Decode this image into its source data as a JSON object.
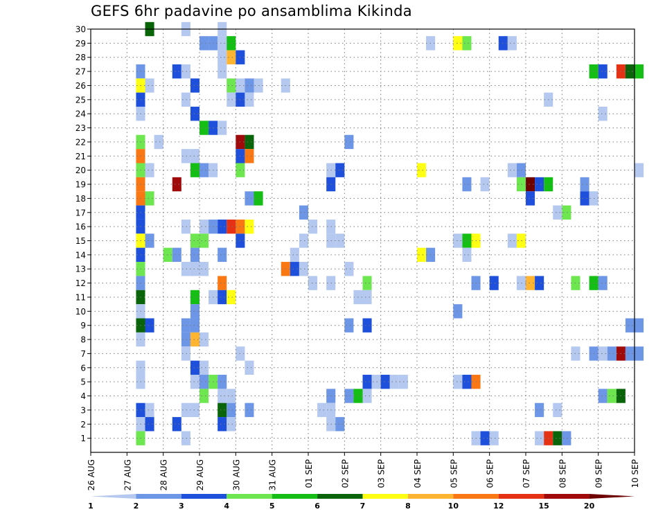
{
  "chart_data": {
    "type": "heatmap",
    "title": "GEFS 6hr padavine po ansamblima Kikinda",
    "xlabel": "",
    "ylabel": "",
    "x_ticks": [
      "26 AUG",
      "27 AUG",
      "28 AUG",
      "29 AUG",
      "30 AUG",
      "31 AUG",
      "01 SEP",
      "02 SEP",
      "03 SEP",
      "04 SEP",
      "05 SEP",
      "06 SEP",
      "07 SEP",
      "08 SEP",
      "09 SEP",
      "10 SEP"
    ],
    "x_range_days": [
      0,
      15
    ],
    "x_step_days": 0.25,
    "y_ticks": [
      1,
      2,
      3,
      4,
      5,
      6,
      7,
      8,
      9,
      10,
      11,
      12,
      13,
      14,
      15,
      16,
      17,
      18,
      19,
      20,
      21,
      22,
      23,
      24,
      25,
      26,
      27,
      28,
      29,
      30
    ],
    "y_range": [
      0,
      30
    ],
    "grid": true,
    "colorbar": {
      "labels": [
        "1",
        "2",
        "3",
        "4",
        "5",
        "6",
        "7",
        "8",
        "10",
        "12",
        "15",
        "20"
      ],
      "colors": [
        "#b4c8f0",
        "#6e96e6",
        "#1e50dc",
        "#6ee650",
        "#14be14",
        "#0a640a",
        "#ffff14",
        "#ffb432",
        "#fa7814",
        "#e63214",
        "#a00a0a",
        "#6e0000"
      ]
    },
    "cell_values_note": "class index 1-12 maps to colorbar.colors",
    "cells": [
      [
        1.5,
        30,
        6
      ],
      [
        2.5,
        30,
        1
      ],
      [
        3.5,
        30,
        1
      ],
      [
        3,
        29,
        2
      ],
      [
        3.25,
        29,
        2
      ],
      [
        3.5,
        29,
        1
      ],
      [
        3.75,
        29,
        5
      ],
      [
        9.25,
        29,
        1
      ],
      [
        10,
        29,
        7
      ],
      [
        10.25,
        29,
        4
      ],
      [
        11.25,
        29,
        3
      ],
      [
        11.5,
        29,
        1
      ],
      [
        3.5,
        28,
        1
      ],
      [
        3.75,
        28,
        8
      ],
      [
        4,
        28,
        3
      ],
      [
        3.5,
        27,
        1
      ],
      [
        1.25,
        27,
        2
      ],
      [
        2.25,
        27,
        3
      ],
      [
        2.5,
        27,
        1
      ],
      [
        13.75,
        27,
        5
      ],
      [
        14,
        27,
        3
      ],
      [
        14.5,
        27,
        10
      ],
      [
        14.75,
        27,
        6
      ],
      [
        15,
        27,
        5
      ],
      [
        1.25,
        26,
        7
      ],
      [
        1.5,
        26,
        1
      ],
      [
        2.75,
        26,
        3
      ],
      [
        3.75,
        26,
        4
      ],
      [
        4,
        26,
        1
      ],
      [
        4.25,
        26,
        2
      ],
      [
        4.5,
        26,
        1
      ],
      [
        5.25,
        26,
        1
      ],
      [
        1.25,
        25,
        3
      ],
      [
        2.5,
        25,
        1
      ],
      [
        3.75,
        25,
        1
      ],
      [
        4,
        25,
        3
      ],
      [
        4.25,
        25,
        1
      ],
      [
        12.5,
        25,
        1
      ],
      [
        1.25,
        24,
        1
      ],
      [
        2.75,
        24,
        3
      ],
      [
        14,
        24,
        1
      ],
      [
        3,
        23,
        5
      ],
      [
        3.25,
        23,
        3
      ],
      [
        3.5,
        23,
        1
      ],
      [
        1.25,
        22,
        4
      ],
      [
        1.75,
        22,
        1
      ],
      [
        4,
        22,
        11
      ],
      [
        4.25,
        22,
        6
      ],
      [
        7,
        22,
        2
      ],
      [
        1.25,
        21,
        9
      ],
      [
        2.5,
        21,
        1
      ],
      [
        2.75,
        21,
        1
      ],
      [
        4,
        21,
        3
      ],
      [
        4.25,
        21,
        9
      ],
      [
        1.25,
        20,
        4
      ],
      [
        1.5,
        20,
        1
      ],
      [
        2.75,
        20,
        5
      ],
      [
        3,
        20,
        2
      ],
      [
        3.25,
        20,
        1
      ],
      [
        4,
        20,
        4
      ],
      [
        6.5,
        20,
        1
      ],
      [
        6.75,
        20,
        3
      ],
      [
        9,
        20,
        7
      ],
      [
        11.5,
        20,
        1
      ],
      [
        11.75,
        20,
        2
      ],
      [
        15,
        20,
        1
      ],
      [
        1.25,
        19,
        9
      ],
      [
        2.25,
        19,
        11
      ],
      [
        6.5,
        19,
        3
      ],
      [
        10.25,
        19,
        2
      ],
      [
        10.75,
        19,
        1
      ],
      [
        11.75,
        19,
        4
      ],
      [
        12,
        19,
        12
      ],
      [
        12.25,
        19,
        3
      ],
      [
        12.5,
        19,
        5
      ],
      [
        13.5,
        19,
        2
      ],
      [
        1.25,
        18,
        9
      ],
      [
        1.5,
        18,
        4
      ],
      [
        4.25,
        18,
        2
      ],
      [
        4.5,
        18,
        5
      ],
      [
        12,
        18,
        3
      ],
      [
        13.5,
        18,
        3
      ],
      [
        13.75,
        18,
        1
      ],
      [
        1.25,
        17,
        3
      ],
      [
        5.75,
        17,
        2
      ],
      [
        12.75,
        17,
        1
      ],
      [
        13,
        17,
        4
      ],
      [
        1.25,
        16,
        3
      ],
      [
        2.5,
        16,
        1
      ],
      [
        3,
        16,
        1
      ],
      [
        3.25,
        16,
        2
      ],
      [
        3.5,
        16,
        3
      ],
      [
        3.75,
        16,
        10
      ],
      [
        4,
        16,
        9
      ],
      [
        4.25,
        16,
        7
      ],
      [
        6,
        16,
        1
      ],
      [
        6.5,
        16,
        1
      ],
      [
        1.25,
        15,
        7
      ],
      [
        1.5,
        15,
        2
      ],
      [
        2.75,
        15,
        4
      ],
      [
        3,
        15,
        4
      ],
      [
        4,
        15,
        3
      ],
      [
        5.75,
        15,
        1
      ],
      [
        6.5,
        15,
        1
      ],
      [
        6.75,
        15,
        1
      ],
      [
        10,
        15,
        1
      ],
      [
        10.25,
        15,
        5
      ],
      [
        10.5,
        15,
        7
      ],
      [
        11.5,
        15,
        1
      ],
      [
        11.75,
        15,
        7
      ],
      [
        1.25,
        14,
        3
      ],
      [
        2,
        14,
        4
      ],
      [
        2.25,
        14,
        2
      ],
      [
        2.75,
        14,
        2
      ],
      [
        3.5,
        14,
        2
      ],
      [
        5.5,
        14,
        1
      ],
      [
        9,
        14,
        7
      ],
      [
        9.25,
        14,
        2
      ],
      [
        10.25,
        14,
        1
      ],
      [
        1.25,
        13,
        4
      ],
      [
        2.5,
        13,
        1
      ],
      [
        2.75,
        13,
        1
      ],
      [
        3,
        13,
        1
      ],
      [
        5.25,
        13,
        9
      ],
      [
        5.5,
        13,
        3
      ],
      [
        5.75,
        13,
        1
      ],
      [
        7,
        13,
        1
      ],
      [
        1.25,
        12,
        2
      ],
      [
        3.5,
        12,
        9
      ],
      [
        6,
        12,
        1
      ],
      [
        6.5,
        12,
        1
      ],
      [
        7.5,
        12,
        4
      ],
      [
        10.5,
        12,
        2
      ],
      [
        11,
        12,
        3
      ],
      [
        11.75,
        12,
        1
      ],
      [
        12,
        12,
        8
      ],
      [
        12.25,
        12,
        3
      ],
      [
        13.25,
        12,
        4
      ],
      [
        13.75,
        12,
        5
      ],
      [
        14,
        12,
        2
      ],
      [
        1.25,
        11,
        6
      ],
      [
        2.75,
        11,
        5
      ],
      [
        3.25,
        11,
        1
      ],
      [
        3.5,
        11,
        3
      ],
      [
        3.75,
        11,
        7
      ],
      [
        7.25,
        11,
        1
      ],
      [
        7.5,
        11,
        1
      ],
      [
        1.25,
        10,
        1
      ],
      [
        2.75,
        10,
        2
      ],
      [
        10,
        10,
        2
      ],
      [
        1.25,
        9,
        6
      ],
      [
        1.5,
        9,
        3
      ],
      [
        2.5,
        9,
        2
      ],
      [
        2.75,
        9,
        2
      ],
      [
        7,
        9,
        2
      ],
      [
        7.5,
        9,
        3
      ],
      [
        14.75,
        9,
        2
      ],
      [
        15,
        9,
        2
      ],
      [
        1.25,
        8,
        1
      ],
      [
        2.5,
        8,
        2
      ],
      [
        2.75,
        8,
        8
      ],
      [
        3,
        8,
        1
      ],
      [
        2.5,
        7,
        1
      ],
      [
        4,
        7,
        1
      ],
      [
        13.25,
        7,
        1
      ],
      [
        13.75,
        7,
        2
      ],
      [
        14,
        7,
        1
      ],
      [
        14.25,
        7,
        2
      ],
      [
        14.5,
        7,
        11
      ],
      [
        14.75,
        7,
        2
      ],
      [
        15,
        7,
        2
      ],
      [
        1.25,
        6,
        1
      ],
      [
        2.75,
        6,
        3
      ],
      [
        3,
        6,
        1
      ],
      [
        4.25,
        6,
        1
      ],
      [
        1.25,
        5,
        1
      ],
      [
        2.75,
        5,
        1
      ],
      [
        3,
        5,
        2
      ],
      [
        3.25,
        5,
        4
      ],
      [
        3.5,
        5,
        2
      ],
      [
        7.5,
        5,
        3
      ],
      [
        7.75,
        5,
        1
      ],
      [
        8,
        5,
        3
      ],
      [
        8.25,
        5,
        1
      ],
      [
        8.5,
        5,
        1
      ],
      [
        10,
        5,
        1
      ],
      [
        10.25,
        5,
        3
      ],
      [
        10.5,
        5,
        9
      ],
      [
        3,
        4,
        4
      ],
      [
        3.5,
        4,
        1
      ],
      [
        3.75,
        4,
        1
      ],
      [
        6.5,
        4,
        2
      ],
      [
        7,
        4,
        2
      ],
      [
        7.25,
        4,
        5
      ],
      [
        7.5,
        4,
        1
      ],
      [
        14,
        4,
        2
      ],
      [
        14.25,
        4,
        4
      ],
      [
        14.5,
        4,
        6
      ],
      [
        1.25,
        3,
        3
      ],
      [
        1.5,
        3,
        1
      ],
      [
        2.5,
        3,
        1
      ],
      [
        2.75,
        3,
        1
      ],
      [
        3.5,
        3,
        6
      ],
      [
        3.75,
        3,
        2
      ],
      [
        4.25,
        3,
        2
      ],
      [
        6.25,
        3,
        1
      ],
      [
        6.5,
        3,
        1
      ],
      [
        12.25,
        3,
        2
      ],
      [
        12.75,
        3,
        1
      ],
      [
        1.25,
        2,
        1
      ],
      [
        1.5,
        2,
        3
      ],
      [
        2.25,
        2,
        3
      ],
      [
        3.5,
        2,
        3
      ],
      [
        3.75,
        2,
        1
      ],
      [
        6.5,
        2,
        1
      ],
      [
        6.75,
        2,
        2
      ],
      [
        1.25,
        1,
        4
      ],
      [
        2.5,
        1,
        1
      ],
      [
        10.5,
        1,
        1
      ],
      [
        10.75,
        1,
        3
      ],
      [
        11,
        1,
        1
      ],
      [
        12.25,
        1,
        1
      ],
      [
        12.5,
        1,
        10
      ],
      [
        12.75,
        1,
        6
      ],
      [
        13,
        1,
        2
      ]
    ]
  }
}
